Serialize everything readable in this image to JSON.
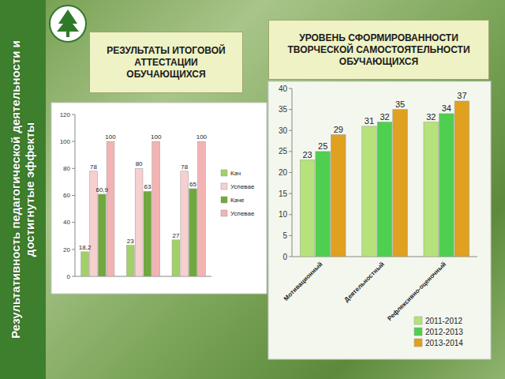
{
  "header": {
    "title": "Результативность педагогической деятельности и достигнутые эффекты"
  },
  "chart_data": [
    {
      "type": "bar",
      "title": "РЕЗУЛЬТАТЫ ИТОГОВОЙ АТТЕСТАЦИИ ОБУЧАЮЩИХСЯ",
      "categories": [
        null,
        null,
        null
      ],
      "series": [
        {
          "name": "Кач",
          "color": "#a3cf68",
          "values": [
            18.2,
            23,
            27
          ],
          "value_labels": [
            "18,2",
            "23",
            "27"
          ]
        },
        {
          "name": "Успевае",
          "color": "#f7cfcf",
          "values": [
            78,
            80,
            78
          ]
        },
        {
          "name": "Каче",
          "color": "#6fa83c",
          "values": [
            60.9,
            63,
            65
          ],
          "value_labels": [
            "60,9",
            "63",
            "65"
          ]
        },
        {
          "name": "Успевае",
          "color": "#f3b3b3",
          "values": [
            100,
            100,
            100
          ]
        }
      ],
      "ylim": [
        0,
        120
      ],
      "yticks": [
        0,
        20,
        40,
        60,
        80,
        100,
        120
      ],
      "grid": false,
      "legend": "right",
      "data_labels": true,
      "tick_labels": "y"
    },
    {
      "type": "bar",
      "title": "УРОВЕНЬ СФОРМИРОВАННОСТИ ТВОРЧЕСКОЙ САМОСТОЯТЕЛЬНОСТИ ОБУЧАЮЩИХСЯ",
      "categories": [
        "Мотивационный",
        "Деятельностный",
        "Рефлексивно-оценочный"
      ],
      "series": [
        {
          "name": "2011-2012",
          "color": "#b5e27a",
          "values": [
            23,
            31,
            32
          ]
        },
        {
          "name": "2012-2013",
          "color": "#4fcf4f",
          "values": [
            25,
            32,
            34
          ]
        },
        {
          "name": "2013-2014",
          "color": "#e0a020",
          "values": [
            29,
            35,
            37
          ]
        }
      ],
      "ylim": [
        0,
        40
      ],
      "yticks": [
        0,
        5,
        10,
        15,
        20,
        25,
        30,
        35,
        40
      ],
      "grid": false,
      "legend": "bottom",
      "data_labels": true
    }
  ]
}
